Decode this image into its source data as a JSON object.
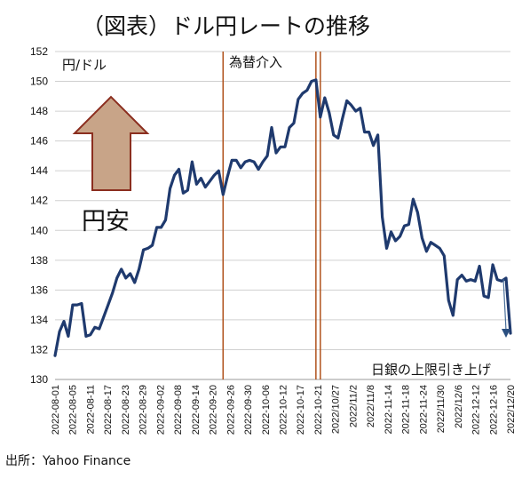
{
  "title": "（図表）ドル円レートの推移",
  "source": "出所：Yahoo  Finance",
  "chart_data": {
    "type": "line",
    "ylabel": "円/ドル",
    "ylim": [
      130,
      152
    ],
    "yticks": [
      130,
      132,
      134,
      136,
      138,
      140,
      142,
      144,
      146,
      148,
      150,
      152
    ],
    "grid": true,
    "series_color": "#1f3a6e",
    "xtick_labels": [
      "2022-08-01",
      "2022-08-05",
      "2022-08-11",
      "2022-08-17",
      "2022-08-23",
      "2022-08-29",
      "2022-09-02",
      "2022-09-08",
      "2022-09-14",
      "2022-09-20",
      "2022-09-26",
      "2022-09-30",
      "2022-10-06",
      "2022-10-12",
      "2022-10-17",
      "2022-10-21",
      "2022/10/27",
      "2022/11/2",
      "2022/11/8",
      "2022-11-14",
      "2022-11-18",
      "2022-11-24",
      "2022/11/30",
      "2022/12/6",
      "2022-12-12",
      "2022-12-16",
      "2022/12/20"
    ],
    "values": [
      131.6,
      133.2,
      133.9,
      132.9,
      135.0,
      135.0,
      135.1,
      132.9,
      133.0,
      133.5,
      133.4,
      134.2,
      135.0,
      135.8,
      136.8,
      137.4,
      136.8,
      137.1,
      136.5,
      137.4,
      138.7,
      138.8,
      139.0,
      140.2,
      140.2,
      140.7,
      142.8,
      143.7,
      144.1,
      142.5,
      142.7,
      144.6,
      143.1,
      143.5,
      142.9,
      143.3,
      143.7,
      144.0,
      142.4,
      143.6,
      144.7,
      144.7,
      144.2,
      144.6,
      144.7,
      144.6,
      144.1,
      144.6,
      145.0,
      146.9,
      145.2,
      145.6,
      145.6,
      146.9,
      147.2,
      148.8,
      149.2,
      149.4,
      150.0,
      150.1,
      147.6,
      148.9,
      147.9,
      146.4,
      146.2,
      147.5,
      148.7,
      148.4,
      148.0,
      148.2,
      146.6,
      146.6,
      145.7,
      146.4,
      140.9,
      138.8,
      139.9,
      139.3,
      139.6,
      140.3,
      140.4,
      142.1,
      141.2,
      139.5,
      138.6,
      139.2,
      139.0,
      138.8,
      138.3,
      135.3,
      134.3,
      136.7,
      137.0,
      136.6,
      136.7,
      136.6,
      137.6,
      135.6,
      135.5,
      137.7,
      136.7,
      136.6,
      136.8,
      133.1
    ],
    "annotations": {
      "intervention_label": "為替介入",
      "intervention_indices": [
        38,
        59,
        60
      ],
      "boj_label": "日銀の上限引き上げ",
      "yen_weak_label": "円安"
    },
    "intervention_color": "#b0521c",
    "arrow_fill": "#c8a488",
    "arrow_stroke": "#8b2e1f"
  }
}
